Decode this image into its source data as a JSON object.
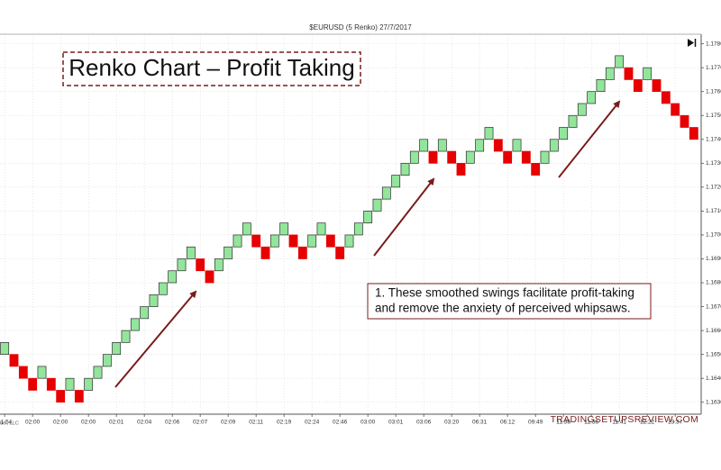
{
  "chart_data": {
    "type": "renko",
    "title": "$EURUSD (5 Renko)  27/7/2017",
    "headline": "Renko Chart – Profit Taking",
    "annotation": [
      "1. These smoothed swings facilitate profit-taking",
      "and remove the anxiety of perceived whipsaws."
    ],
    "watermark": "TRADINGSETUPSREVIEW.COM",
    "credit": "der, LLC",
    "brick_size": 0.0005,
    "up_color": "#93e59c",
    "down_color": "#e60000",
    "categories": [
      "01:54",
      null,
      null,
      "02:00",
      null,
      null,
      "02:00",
      null,
      null,
      "02:00",
      null,
      null,
      "02:01",
      null,
      null,
      "02:04",
      null,
      null,
      "02:06",
      null,
      null,
      "02:07",
      null,
      null,
      "02:09",
      null,
      null,
      "02:11",
      null,
      null,
      "02:19",
      null,
      null,
      "02:24",
      null,
      null,
      "02:46",
      null,
      null,
      "03:00",
      null,
      null,
      "03:01",
      null,
      null,
      "03:06",
      null,
      null,
      "03:20",
      null,
      null,
      "06:31",
      null,
      null,
      "06:12",
      null,
      null,
      "09:49",
      null,
      null,
      "11:36",
      null,
      null,
      "11:36",
      null,
      null,
      "11:41",
      null,
      null,
      "12:22",
      null,
      null,
      "13:37",
      null,
      null
    ],
    "values": [
      1.1655,
      1.1645,
      1.164,
      1.1635,
      1.1645,
      1.1635,
      1.163,
      1.164,
      1.163,
      1.164,
      1.1645,
      1.165,
      1.1655,
      1.166,
      1.1665,
      1.167,
      1.1675,
      1.168,
      1.1685,
      1.169,
      1.1695,
      1.1685,
      1.168,
      1.169,
      1.1695,
      1.17,
      1.1705,
      1.1695,
      1.169,
      1.17,
      1.1705,
      1.1695,
      1.169,
      1.17,
      1.1705,
      1.1695,
      1.169,
      1.17,
      1.1705,
      1.171,
      1.1715,
      1.172,
      1.1725,
      1.173,
      1.1735,
      1.174,
      1.173,
      1.174,
      1.173,
      1.1725,
      1.1735,
      1.174,
      1.1745,
      1.1735,
      1.173,
      1.174,
      1.173,
      1.1725,
      1.1735,
      1.174,
      1.1745,
      1.175,
      1.1755,
      1.176,
      1.1765,
      1.177,
      1.1775,
      1.1765,
      1.176,
      1.177,
      1.176,
      1.1755,
      1.175,
      1.1745,
      1.174
    ],
    "ylim": [
      1.1625,
      1.1784
    ],
    "yticks": [
      {
        "value": 1.163,
        "label": "1.1630"
      },
      {
        "value": 1.164,
        "label": "1.1640"
      },
      {
        "value": 1.165,
        "label": "1.1650"
      },
      {
        "value": 1.166,
        "label": "1.1660"
      },
      {
        "value": 1.167,
        "label": "1.1670"
      },
      {
        "value": 1.168,
        "label": "1.1680"
      },
      {
        "value": 1.169,
        "label": "1.1690"
      },
      {
        "value": 1.17,
        "label": "1.1700"
      },
      {
        "value": 1.171,
        "label": "1.1710"
      },
      {
        "value": 1.172,
        "label": "1.1720"
      },
      {
        "value": 1.173,
        "label": "1.1730"
      },
      {
        "value": 1.174,
        "label": "1.1740"
      },
      {
        "value": 1.175,
        "label": "1.1750"
      },
      {
        "value": 1.176,
        "label": "1.1760"
      },
      {
        "value": 1.177,
        "label": "1.1770"
      },
      {
        "value": 1.178,
        "label": "1.1780"
      }
    ],
    "grid": true
  }
}
